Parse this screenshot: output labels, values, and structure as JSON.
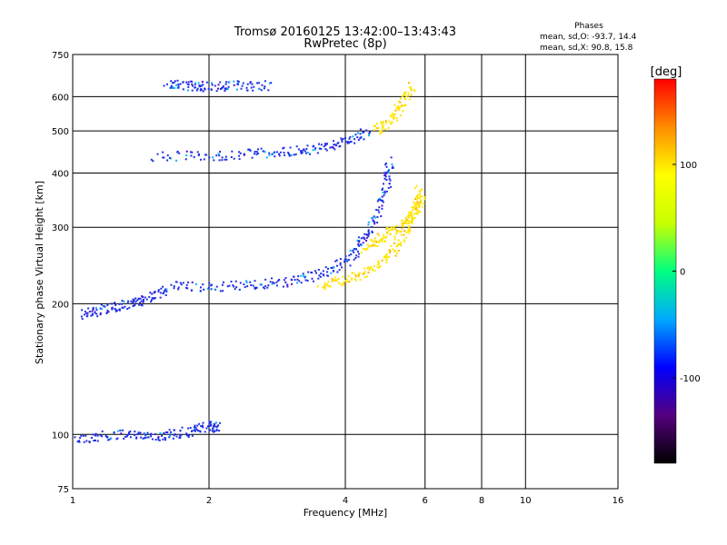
{
  "chart_data": {
    "type": "scatter",
    "title": "Tromsø 20160125 13:42:00–13:43:43",
    "subtitle": "RwPretec (8p)",
    "xlabel": "Frequency [MHz]",
    "ylabel": "Stationary phase Virtual Height [km]",
    "x_scale": "log",
    "y_scale": "log",
    "xlim": [
      1,
      16
    ],
    "ylim": [
      75,
      750
    ],
    "x_ticks": [
      1,
      2,
      4,
      6,
      8,
      10,
      16
    ],
    "y_ticks": [
      75,
      100,
      200,
      300,
      400,
      500,
      600,
      750
    ],
    "grid": true,
    "phase_info": {
      "heading": "Phases",
      "o_line": "mean, sd,O: -93.7, 14.4",
      "x_line": "mean, sd,X: 90.8, 15.8"
    },
    "colorbar": {
      "label": "[deg]",
      "ticks": [
        100,
        0,
        -100
      ],
      "range": [
        -180,
        180
      ],
      "colors": [
        "#000000",
        "#55007f",
        "#0000ff",
        "#00aaff",
        "#00ff80",
        "#c8ff00",
        "#ffff00",
        "#ff8c00",
        "#ff0000"
      ]
    },
    "series": [
      {
        "name": "O",
        "phase_mean": -93.7,
        "phase_sd": 14.4,
        "color": "#1f2fe6",
        "traces": [
          {
            "x": [
              1.0,
              1.2,
              1.4,
              1.6,
              1.8,
              2.0,
              2.1
            ],
            "y": [
              98,
              100,
              100,
              100,
              102,
              105,
              104
            ]
          },
          {
            "x": [
              1.05,
              1.15,
              1.3,
              1.45,
              1.6
            ],
            "y": [
              190,
              195,
              200,
              205,
              215
            ]
          },
          {
            "x": [
              1.6,
              2.0,
              2.5,
              3.0,
              3.5,
              4.0,
              4.3,
              4.6,
              4.9,
              5.0
            ],
            "y": [
              220,
              220,
              222,
              226,
              235,
              250,
              275,
              310,
              370,
              430
            ]
          },
          {
            "x": [
              1.5,
              2.0,
              2.5,
              3.0,
              3.5,
              4.0,
              4.5
            ],
            "y": [
              440,
              440,
              445,
              450,
              458,
              475,
              500
            ]
          },
          {
            "x": [
              1.6,
              1.8,
              2.0,
              2.3,
              2.7
            ],
            "y": [
              640,
              638,
              636,
              638,
              640
            ]
          }
        ]
      },
      {
        "name": "X",
        "phase_mean": 90.8,
        "phase_sd": 15.8,
        "color": "#ffe600",
        "traces": [
          {
            "x": [
              3.5,
              4.0,
              4.5,
              5.0,
              5.4,
              5.7,
              5.8
            ],
            "y": [
              222,
              228,
              240,
              260,
              290,
              330,
              370
            ]
          },
          {
            "x": [
              4.4,
              4.8,
              5.2,
              5.6,
              5.9
            ],
            "y": [
              270,
              285,
              300,
              320,
              350
            ]
          },
          {
            "x": [
              4.6,
              5.0,
              5.3,
              5.6
            ],
            "y": [
              500,
              530,
              580,
              640
            ]
          }
        ]
      }
    ]
  }
}
